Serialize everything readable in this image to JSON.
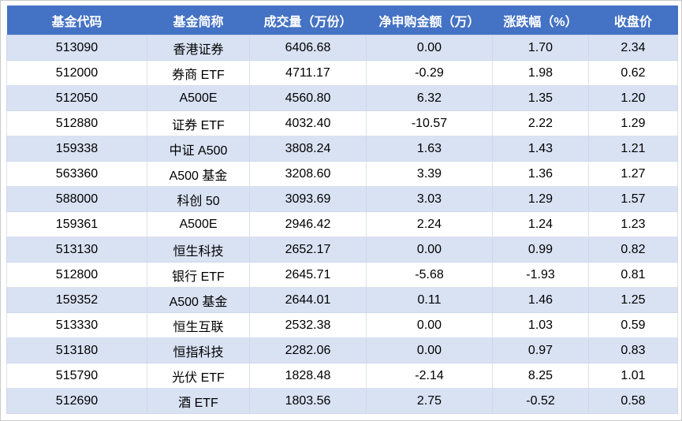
{
  "chart_data": {
    "type": "table",
    "title": "",
    "columns": [
      "基金代码",
      "基金简称",
      "成交量（万份）",
      "净申购金额（万）",
      "涨跌幅（%）",
      "收盘价"
    ],
    "rows": [
      [
        "513090",
        "香港证券",
        "6406.68",
        "0.00",
        "1.70",
        "2.34"
      ],
      [
        "512000",
        "券商 ETF",
        "4711.17",
        "-0.29",
        "1.98",
        "0.62"
      ],
      [
        "512050",
        "A500E",
        "4560.80",
        "6.32",
        "1.35",
        "1.20"
      ],
      [
        "512880",
        "证券 ETF",
        "4032.40",
        "-10.57",
        "2.22",
        "1.29"
      ],
      [
        "159338",
        "中证 A500",
        "3808.24",
        "1.63",
        "1.43",
        "1.21"
      ],
      [
        "563360",
        "A500 基金",
        "3208.60",
        "3.39",
        "1.36",
        "1.27"
      ],
      [
        "588000",
        "科创 50",
        "3093.69",
        "3.03",
        "1.29",
        "1.57"
      ],
      [
        "159361",
        "A500E",
        "2946.42",
        "2.24",
        "1.24",
        "1.23"
      ],
      [
        "513130",
        "恒生科技",
        "2652.17",
        "0.00",
        "0.99",
        "0.82"
      ],
      [
        "512800",
        "银行 ETF",
        "2645.71",
        "-5.68",
        "-1.93",
        "0.81"
      ],
      [
        "159352",
        "A500 基金",
        "2644.01",
        "0.11",
        "1.46",
        "1.25"
      ],
      [
        "513330",
        "恒生互联",
        "2532.38",
        "0.00",
        "1.03",
        "0.59"
      ],
      [
        "513180",
        "恒指科技",
        "2282.06",
        "0.00",
        "0.97",
        "0.83"
      ],
      [
        "515790",
        "光伏 ETF",
        "1828.48",
        "-2.14",
        "8.25",
        "1.01"
      ],
      [
        "512690",
        "酒 ETF",
        "1803.56",
        "2.75",
        "-0.52",
        "0.58"
      ]
    ],
    "layout": {
      "banded_rows": true,
      "first_data_row_banded": true
    },
    "colors": {
      "header_bg": "#4472C4",
      "header_text": "#FFFFFF",
      "band_bg": "#D9E2F3",
      "row_bg": "#FFFFFF",
      "body_text": "#000000"
    }
  }
}
